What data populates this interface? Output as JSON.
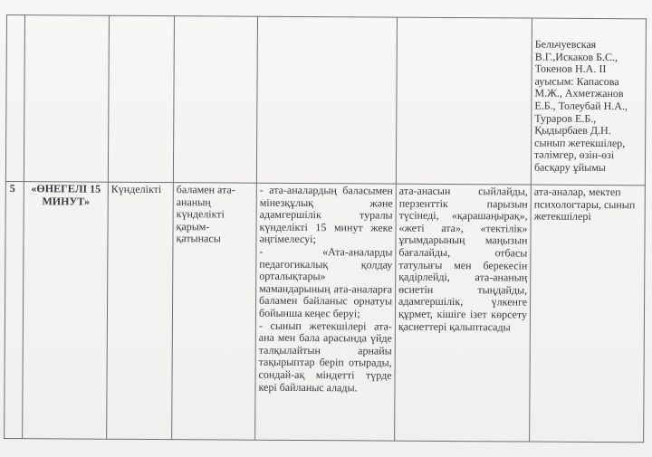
{
  "row_top": {
    "responsible": "Бельчуевская В.Г.,Искаков Б.С., Токенов Н.А. II ауысым: Капасова М.Ж., Ахметжанов Е.Б., Толеубай Н.А., Тураров Е.Б., Қыдырбаев Д.Н. сынып жетекшілер, тәлімгер, өзін-өзі басқару ұйымы"
  },
  "row_5": {
    "number": "5",
    "name": "«ӨНЕГЕЛІ 15 МИНУТ»",
    "frequency": "Күнделікті",
    "goal": "баламен ата-ананың күнделікті қарым-қатынасы",
    "activities": [
      "- ата-аналардың баласымен мінезқұлық және адамгершілік туралы күнделікті 15 минут жеке әңгімелесуі;",
      "- «Ата-аналарды педагогикалық қолдау орталықтары» мамандарының ата-аналарға баламен байланыс орнатуы бойынша кеңес беруі;",
      "- сынып жетекшілері ата-ана мен бала арасында үйде талқылайтын арнайы тақырыптар беріп отырады, сондай-ақ міндетті түрде кері байланыс алады."
    ],
    "result": "ата-анасын сыйлайды, перзенттік парызын түсінеді, «қарашаңырақ», «жеті ата», «тектілік» ұғымдарының маңызын бағалайды, отбасы татулығы мен берекесін қадірлейді, ата-ананың өсиетін тыңдайды, адамгершілік, үлкенге құрмет, кішіге ізет көрсету қасиеттері қалыптасады",
    "responsible": "ата-аналар, мектеп психологтары, сынып жетекшілері"
  }
}
